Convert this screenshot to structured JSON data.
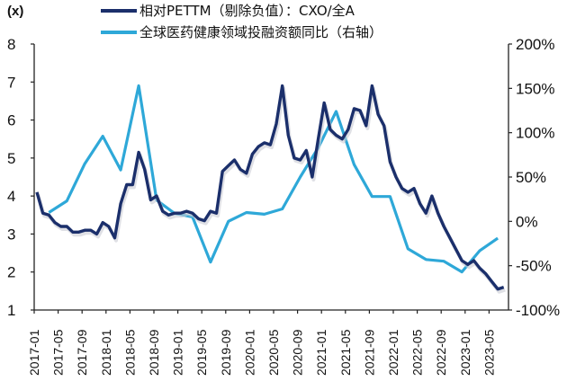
{
  "chart_data": {
    "type": "line",
    "title": "",
    "unit_label": "(x)",
    "xlabel": "",
    "ylabel": "(x)",
    "ylabel_right": "%",
    "ylim": [
      1,
      8
    ],
    "ylim_right": [
      -100,
      200
    ],
    "y_ticks": [
      "1",
      "2",
      "3",
      "4",
      "5",
      "6",
      "7",
      "8"
    ],
    "y_ticks_right": [
      "-100%",
      "-50%",
      "0%",
      "50%",
      "100%",
      "150%",
      "200%"
    ],
    "x_tick_labels": [
      "2017-01",
      "2017-05",
      "2017-09",
      "2018-01",
      "2018-05",
      "2018-09",
      "2019-01",
      "2019-05",
      "2019-09",
      "2020-01",
      "2020-05",
      "2020-09",
      "2021-01",
      "2021-05",
      "2021-09",
      "2022-01",
      "2022-05",
      "2022-09",
      "2023-01",
      "2023-05"
    ],
    "grid": false,
    "legend_position": "top",
    "series": [
      {
        "name": "相对PETTM（剔除负值）：CXO/全A",
        "axis": "left",
        "color": "#1b2f6b",
        "frequency": "monthly",
        "start": "2017-01",
        "values": [
          4.1,
          3.55,
          3.5,
          3.3,
          3.2,
          3.2,
          3.05,
          3.05,
          3.1,
          3.1,
          3.0,
          3.3,
          3.2,
          2.9,
          3.8,
          4.3,
          4.3,
          5.15,
          4.7,
          3.9,
          4.0,
          3.6,
          3.5,
          3.55,
          3.55,
          3.6,
          3.55,
          3.4,
          3.35,
          3.6,
          3.55,
          4.65,
          4.8,
          4.95,
          4.7,
          4.6,
          5.1,
          5.3,
          5.4,
          5.35,
          5.9,
          6.9,
          5.6,
          5.0,
          4.95,
          5.2,
          4.5,
          5.5,
          6.45,
          5.75,
          5.6,
          5.5,
          5.75,
          6.3,
          6.25,
          5.85,
          6.9,
          6.15,
          5.85,
          4.9,
          4.5,
          4.2,
          4.1,
          4.2,
          3.8,
          3.55,
          4.0,
          3.55,
          3.2,
          2.9,
          2.6,
          2.3,
          2.2,
          2.3,
          2.1,
          1.95,
          1.75,
          1.55,
          1.6
        ]
      },
      {
        "name": "全球医药健康领域投融资额同比（右轴）",
        "axis": "right",
        "color": "#2ea8d8",
        "frequency": "quarterly",
        "x": [
          "2017-03",
          "2017-06",
          "2017-09",
          "2017-12",
          "2018-03",
          "2018-06",
          "2018-09",
          "2018-12",
          "2019-03",
          "2019-06",
          "2019-09",
          "2019-12",
          "2020-03",
          "2020-06",
          "2020-09",
          "2020-12",
          "2021-03",
          "2021-06",
          "2021-09",
          "2021-12",
          "2022-03",
          "2022-06",
          "2022-09",
          "2022-12",
          "2023-03",
          "2023-06"
        ],
        "values": [
          10,
          23,
          65,
          96,
          58,
          153,
          24,
          9,
          5,
          -46,
          0,
          10,
          8,
          14,
          50,
          83,
          124,
          64,
          28,
          28,
          -31,
          -43,
          -45,
          -57,
          -33,
          -19
        ]
      }
    ]
  },
  "legend": {
    "item1": "相对PETTM（剔除负值）：CXO/全A",
    "item2": "全球医药健康领域投融资额同比（右轴）"
  }
}
